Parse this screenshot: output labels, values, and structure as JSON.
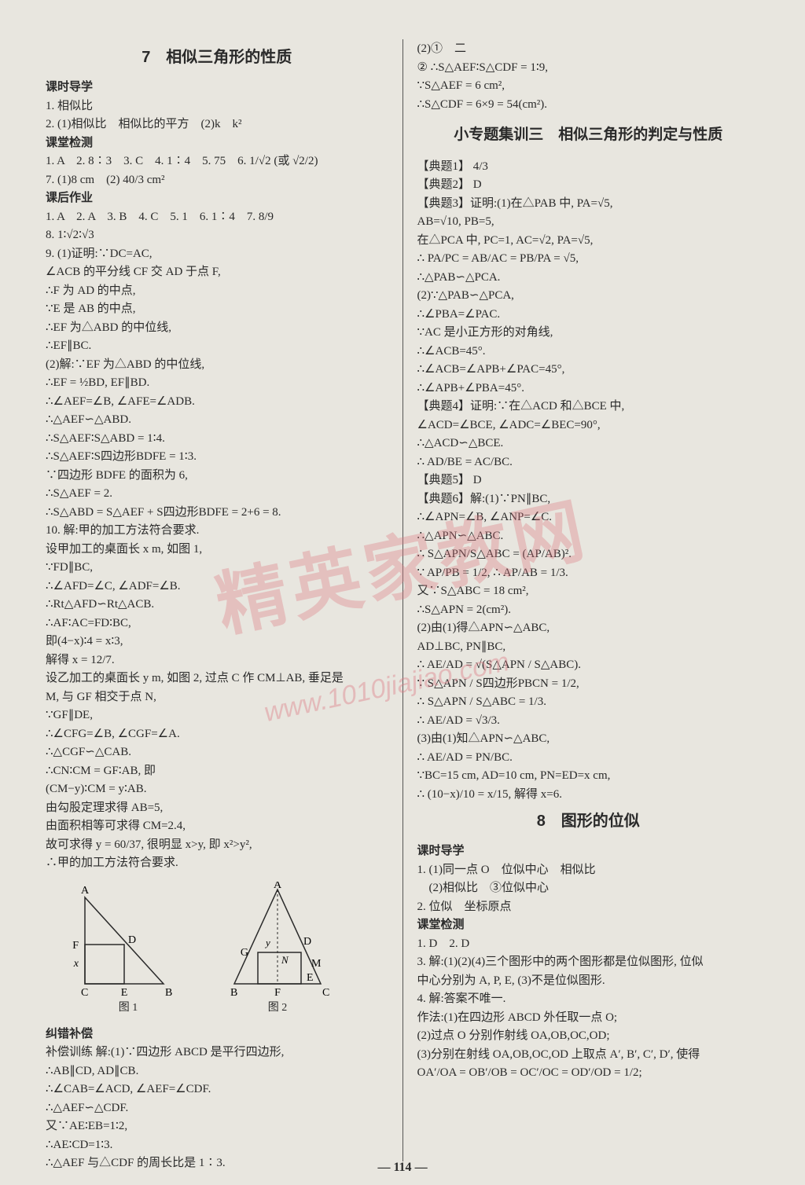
{
  "page_number": "114",
  "watermark_text": "精英家教网",
  "watermark_url": "www.1010jiajiao.com",
  "left": {
    "title": "7　相似三角形的性质",
    "blocks": [
      {
        "h": "课时导学"
      },
      {
        "t": "1. 相似比"
      },
      {
        "t": "2. (1)相似比　相似比的平方　(2)k　k²"
      },
      {
        "h": "课堂检测"
      },
      {
        "t": "1. A　2. 8∶3　3. C　4. 1∶4　5. 75　6. 1/√2 (或 √2/2)"
      },
      {
        "t": "7. (1)8 cm　(2) 40/3 cm²"
      },
      {
        "h": "课后作业"
      },
      {
        "t": "1. A　2. A　3. B　4. C　5. 1　6. 1∶4　7. 8/9"
      },
      {
        "t": "8. 1∶√2∶√3"
      },
      {
        "t": "9. (1)证明:∵DC=AC,"
      },
      {
        "t": "∠ACB 的平分线 CF 交 AD 于点 F,"
      },
      {
        "t": "∴F 为 AD 的中点,"
      },
      {
        "t": "∵E 是 AB 的中点,"
      },
      {
        "t": "∴EF 为△ABD 的中位线,"
      },
      {
        "t": "∴EF∥BC."
      },
      {
        "t": "(2)解:∵EF 为△ABD 的中位线,"
      },
      {
        "t": "∴EF = ½BD, EF∥BD."
      },
      {
        "t": "∴∠AEF=∠B, ∠AFE=∠ADB."
      },
      {
        "t": "∴△AEF∽△ABD."
      },
      {
        "t": "∴S△AEF∶S△ABD = 1∶4."
      },
      {
        "t": "∴S△AEF∶S四边形BDFE = 1∶3."
      },
      {
        "t": "∵四边形 BDFE 的面积为 6,"
      },
      {
        "t": "∴S△AEF = 2."
      },
      {
        "t": "∴S△ABD = S△AEF + S四边形BDFE = 2+6 = 8."
      },
      {
        "t": "10. 解:甲的加工方法符合要求."
      },
      {
        "t": "设甲加工的桌面长 x m, 如图 1,"
      },
      {
        "t": "∵FD∥BC,"
      },
      {
        "t": "∴∠AFD=∠C, ∠ADF=∠B."
      },
      {
        "t": "∴Rt△AFD∽Rt△ACB."
      },
      {
        "t": "∴AF∶AC=FD∶BC,"
      },
      {
        "t": "即(4−x)∶4 = x∶3,"
      },
      {
        "t": "解得 x = 12/7."
      },
      {
        "t": "设乙加工的桌面长 y m, 如图 2, 过点 C 作 CM⊥AB, 垂足是"
      },
      {
        "t": "M, 与 GF 相交于点 N,"
      },
      {
        "t": "∵GF∥DE,"
      },
      {
        "t": "∴∠CFG=∠B, ∠CGF=∠A."
      },
      {
        "t": "∴△CGF∽△CAB."
      },
      {
        "t": "∴CN∶CM = GF∶AB, 即"
      },
      {
        "t": "(CM−y)∶CM = y∶AB."
      },
      {
        "t": "由勾股定理求得 AB=5,"
      },
      {
        "t": "由面积相等可求得 CM=2.4,"
      },
      {
        "t": "故可求得 y = 60/37, 很明显 x>y, 即 x²>y²,"
      },
      {
        "t": "∴甲的加工方法符合要求."
      }
    ],
    "fig1_label": "图 1",
    "fig2_label": "图 2",
    "fig_letters": {
      "A": "A",
      "B": "B",
      "C": "C",
      "D": "D",
      "E": "E",
      "F": "F",
      "G": "G",
      "M": "M",
      "N": "N",
      "x": "x",
      "y": "y"
    },
    "after_figs": [
      {
        "h": "纠错补偿"
      },
      {
        "t": "补偿训练 解:(1)∵四边形 ABCD 是平行四边形,"
      },
      {
        "t": "∴AB∥CD, AD∥CB."
      },
      {
        "t": "∴∠CAB=∠ACD, ∠AEF=∠CDF."
      },
      {
        "t": "∴△AEF∽△CDF."
      },
      {
        "t": "又∵AE∶EB=1∶2,"
      },
      {
        "t": "∴AE∶CD=1∶3."
      },
      {
        "t": "∴△AEF 与△CDF 的周长比是 1∶3."
      }
    ]
  },
  "right": {
    "top": [
      {
        "t": "(2)①　二"
      },
      {
        "t": "② ∴S△AEF∶S△CDF = 1∶9,"
      },
      {
        "t": "∵S△AEF = 6 cm²,"
      },
      {
        "t": "∴S△CDF = 6×9 = 54(cm²)."
      }
    ],
    "title2": "小专题集训三　相似三角形的判定与性质",
    "mid": [
      {
        "t": "【典题1】 4/3"
      },
      {
        "t": "【典题2】 D"
      },
      {
        "t": "【典题3】证明:(1)在△PAB 中, PA=√5,"
      },
      {
        "t": "AB=√10, PB=5,"
      },
      {
        "t": "在△PCA 中, PC=1, AC=√2, PA=√5,"
      },
      {
        "t": "∴ PA/PC = AB/AC = PB/PA = √5,"
      },
      {
        "t": "∴△PAB∽△PCA."
      },
      {
        "t": "(2)∵△PAB∽△PCA,"
      },
      {
        "t": "∴∠PBA=∠PAC."
      },
      {
        "t": "∵AC 是小正方形的对角线,"
      },
      {
        "t": "∴∠ACB=45°."
      },
      {
        "t": "∴∠ACB=∠APB+∠PAC=45°,"
      },
      {
        "t": "∴∠APB+∠PBA=45°."
      },
      {
        "t": "【典题4】证明:∵在△ACD 和△BCE 中,"
      },
      {
        "t": "∠ACD=∠BCE, ∠ADC=∠BEC=90°,"
      },
      {
        "t": "∴△ACD∽△BCE."
      },
      {
        "t": "∴ AD/BE = AC/BC."
      },
      {
        "t": "【典题5】 D"
      },
      {
        "t": "【典题6】解:(1)∵PN∥BC,"
      },
      {
        "t": "∴∠APN=∠B, ∠ANP=∠C."
      },
      {
        "t": "∴△APN∽△ABC."
      },
      {
        "t": "∴ S△APN/S△ABC = (AP/AB)²."
      },
      {
        "t": "∵ AP/PB = 1/2, ∴ AP/AB = 1/3."
      },
      {
        "t": "又∵S△ABC = 18 cm²,"
      },
      {
        "t": "∴S△APN = 2(cm²)."
      },
      {
        "t": "(2)由(1)得△APN∽△ABC,"
      },
      {
        "t": "AD⊥BC, PN∥BC,"
      },
      {
        "t": "∴ AE/AD = √(S△APN / S△ABC)."
      },
      {
        "t": "∵ S△APN / S四边形PBCN = 1/2,"
      },
      {
        "t": "∴ S△APN / S△ABC = 1/3."
      },
      {
        "t": "∴ AE/AD = √3/3."
      },
      {
        "t": "(3)由(1)知△APN∽△ABC,"
      },
      {
        "t": "∴ AE/AD = PN/BC."
      },
      {
        "t": "∵BC=15 cm, AD=10 cm, PN=ED=x cm,"
      },
      {
        "t": "∴ (10−x)/10 = x/15, 解得 x=6."
      }
    ],
    "title3": "8　图形的位似",
    "bottom": [
      {
        "h": "课时导学"
      },
      {
        "t": "1. (1)同一点 O　位似中心　相似比"
      },
      {
        "t": "　(2)相似比　③位似中心"
      },
      {
        "t": "2. 位似　坐标原点"
      },
      {
        "h": "课堂检测"
      },
      {
        "t": "1. D　2. D"
      },
      {
        "t": "3. 解:(1)(2)(4)三个图形中的两个图形都是位似图形, 位似"
      },
      {
        "t": "中心分别为 A, P, E, (3)不是位似图形."
      },
      {
        "t": "4. 解:答案不唯一."
      },
      {
        "t": "作法:(1)在四边形 ABCD 外任取一点 O;"
      },
      {
        "t": "(2)过点 O 分别作射线 OA,OB,OC,OD;"
      },
      {
        "t": "(3)分别在射线 OA,OB,OC,OD 上取点 A′, B′, C′, D′, 使得"
      },
      {
        "t": "OA′/OA = OB′/OB = OC′/OC = OD′/OD = 1/2;"
      }
    ]
  },
  "colors": {
    "bg": "#e8e6df",
    "text": "#2a2a2a",
    "rule": "#555555",
    "watermark": "rgba(220,120,130,0.35)"
  }
}
